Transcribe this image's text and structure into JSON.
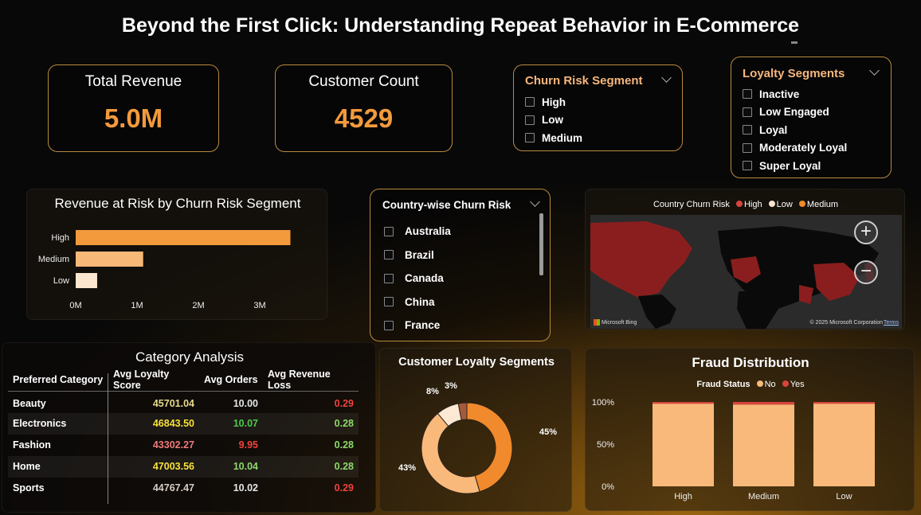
{
  "title": "Beyond the First Click: Understanding Repeat Behavior in E-Commerce",
  "kpis": {
    "revenue": {
      "label": "Total Revenue",
      "value": "5.0M"
    },
    "customers": {
      "label": "Customer Count",
      "value": "4529"
    }
  },
  "churn_slicer": {
    "title": "Churn Risk Segment",
    "options": [
      "High",
      "Low",
      "Medium"
    ]
  },
  "loyalty_slicer": {
    "title": "Loyalty Segments",
    "options": [
      "Inactive",
      "Low Engaged",
      "Loyal",
      "Moderately Loyal",
      "Super Loyal"
    ]
  },
  "country_slicer": {
    "title": "Country-wise Churn Risk",
    "options": [
      "Australia",
      "Brazil",
      "Canada",
      "China",
      "France"
    ]
  },
  "map": {
    "title": "Country Churn Risk",
    "legend": [
      "High",
      "Low",
      "Medium"
    ],
    "colors": {
      "High": "#d9443f",
      "Low": "#f5e6cf",
      "Medium": "#f08a2c"
    },
    "zoom_in": "+",
    "zoom_out": "−",
    "brand": "Microsoft Bing",
    "copyright": "© 2025 Microsoft Corporation",
    "terms": "Terms"
  },
  "revenue_at_risk": {
    "title": "Revenue at Risk by Churn Risk Segment",
    "x_ticks": [
      "0M",
      "1M",
      "2M",
      "3M"
    ]
  },
  "category_analysis": {
    "title": "Category Analysis",
    "headers": [
      "Preferred Category",
      "Avg Loyalty Score",
      "Avg Orders",
      "Avg Revenue Loss"
    ],
    "rows": [
      {
        "category": "Beauty",
        "score": "45701.04",
        "orders": "10.00",
        "loss": "0.29",
        "score_color": "#e8d98a",
        "orders_color": "#e6e6e6",
        "loss_color": "#f0423c"
      },
      {
        "category": "Electronics",
        "score": "46843.50",
        "orders": "10.07",
        "loss": "0.28",
        "score_color": "#f5e13a",
        "orders_color": "#4ecb4a",
        "loss_color": "#8cd96a"
      },
      {
        "category": "Fashion",
        "score": "43302.27",
        "orders": "9.95",
        "loss": "0.28",
        "score_color": "#f07a7a",
        "orders_color": "#f0423c",
        "loss_color": "#8cd96a"
      },
      {
        "category": "Home",
        "score": "47003.56",
        "orders": "10.04",
        "loss": "0.28",
        "score_color": "#f5e13a",
        "orders_color": "#8cd96a",
        "loss_color": "#8cd96a"
      },
      {
        "category": "Sports",
        "score": "44767.47",
        "orders": "10.02",
        "loss": "0.29",
        "score_color": "#d6ccc4",
        "orders_color": "#e6e6e6",
        "loss_color": "#f0423c"
      }
    ]
  },
  "loyalty_donut": {
    "title": "Customer Loyalty Segments"
  },
  "fraud": {
    "title": "Fraud Distribution",
    "legend_title": "Fraud Status",
    "legend": [
      "No",
      "Yes"
    ],
    "y_ticks": [
      "100%",
      "50%",
      "0%"
    ]
  },
  "chart_data": [
    {
      "type": "bar",
      "orientation": "horizontal",
      "title": "Revenue at Risk by Churn Risk Segment",
      "categories": [
        "High",
        "Medium",
        "Low"
      ],
      "values": [
        3.5,
        1.1,
        0.35
      ],
      "unit": "M",
      "xlim": [
        0,
        3.5
      ],
      "colors": [
        "#f39a3d",
        "#f8b878",
        "#fde6cf"
      ]
    },
    {
      "type": "pie",
      "title": "Customer Loyalty Segments",
      "slices": [
        {
          "value": 45,
          "label": "45%",
          "color": "#f08a2c"
        },
        {
          "value": 43,
          "label": "43%",
          "color": "#f9b97a"
        },
        {
          "value": 8,
          "label": "8%",
          "color": "#fce9d4"
        },
        {
          "value": 3,
          "label": "3%",
          "color": "#a65a3c"
        }
      ]
    },
    {
      "type": "bar",
      "stacked": true,
      "title": "Fraud Distribution",
      "categories": [
        "High",
        "Medium",
        "Low"
      ],
      "series": [
        {
          "name": "No",
          "values": [
            98,
            97,
            98
          ],
          "color": "#f9b97a"
        },
        {
          "name": "Yes",
          "values": [
            2,
            3,
            2
          ],
          "color": "#d9443f"
        }
      ],
      "ylim": [
        0,
        100
      ]
    }
  ]
}
